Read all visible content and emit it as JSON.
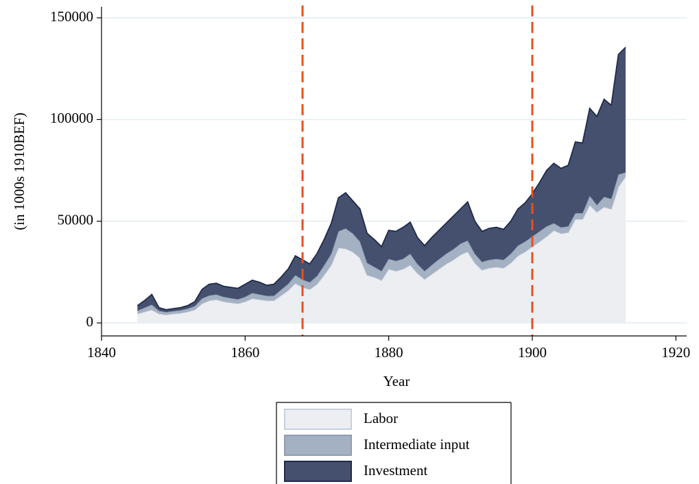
{
  "chart_data": {
    "type": "stacked-area",
    "x_label": "Year",
    "y_label": "(in 1000s 1910BEF)",
    "x": [
      1845,
      1846,
      1847,
      1848,
      1849,
      1850,
      1851,
      1852,
      1853,
      1854,
      1855,
      1856,
      1857,
      1858,
      1859,
      1860,
      1861,
      1862,
      1863,
      1864,
      1865,
      1866,
      1867,
      1868,
      1869,
      1870,
      1871,
      1872,
      1873,
      1874,
      1875,
      1876,
      1877,
      1878,
      1879,
      1880,
      1881,
      1882,
      1883,
      1884,
      1885,
      1886,
      1887,
      1888,
      1889,
      1890,
      1891,
      1892,
      1893,
      1894,
      1895,
      1896,
      1897,
      1898,
      1899,
      1900,
      1901,
      1902,
      1903,
      1904,
      1905,
      1906,
      1907,
      1908,
      1909,
      1910,
      1911,
      1912,
      1913
    ],
    "series": [
      {
        "name": "Labor",
        "color": "#eceef2",
        "stroke": "#c8cfdb",
        "values": [
          4500,
          5500,
          6500,
          4500,
          4000,
          4500,
          4800,
          5500,
          6500,
          9500,
          11000,
          11500,
          10500,
          10000,
          9500,
          10500,
          12000,
          11500,
          11000,
          11000,
          13500,
          16000,
          19500,
          17500,
          16500,
          19000,
          23500,
          28500,
          37000,
          36500,
          35000,
          32000,
          23500,
          22500,
          21000,
          26500,
          25500,
          26500,
          28500,
          24500,
          21500,
          24000,
          26500,
          29000,
          31000,
          33500,
          35000,
          29500,
          26000,
          27000,
          27500,
          27000,
          29500,
          33000,
          35000,
          37500,
          40000,
          42500,
          45500,
          44000,
          44500,
          51000,
          51000,
          58000,
          54500,
          57000,
          56000,
          67000,
          72000
        ]
      },
      {
        "name": "Intermediate input",
        "color": "#a4b1c2",
        "stroke": "#8e9db2",
        "values": [
          1500,
          2000,
          2500,
          1500,
          1300,
          1300,
          1400,
          1500,
          1800,
          2500,
          2500,
          2500,
          2300,
          2200,
          2100,
          2300,
          2700,
          2500,
          2300,
          2300,
          2800,
          3200,
          4000,
          3800,
          3500,
          4000,
          4800,
          5500,
          8000,
          10000,
          9000,
          8000,
          6000,
          5000,
          4500,
          5000,
          5000,
          5000,
          5500,
          4500,
          4000,
          4500,
          4800,
          5000,
          5200,
          5500,
          5500,
          4500,
          4000,
          4000,
          4000,
          4000,
          4500,
          5000,
          5000,
          5000,
          5000,
          5000,
          3500,
          3000,
          3000,
          3000,
          3000,
          4500,
          3500,
          5000,
          5000,
          6000,
          2000
        ]
      },
      {
        "name": "Investment",
        "color": "#45506e",
        "stroke": "#1e2a4a",
        "values": [
          2500,
          3500,
          5000,
          1500,
          1200,
          1200,
          1300,
          1500,
          2200,
          4500,
          5500,
          5500,
          5200,
          5300,
          5400,
          6200,
          6300,
          6000,
          5200,
          5700,
          6200,
          7300,
          9500,
          9700,
          9000,
          11000,
          12700,
          15000,
          16500,
          17500,
          16000,
          16000,
          14500,
          13500,
          12000,
          14000,
          14500,
          15500,
          15500,
          13000,
          12500,
          13500,
          14200,
          15000,
          16300,
          17000,
          19000,
          16000,
          15000,
          15500,
          15500,
          15000,
          16000,
          18000,
          19000,
          21000,
          24000,
          27500,
          29500,
          29000,
          30000,
          35000,
          34500,
          43000,
          43500,
          48000,
          46000,
          59000,
          61500
        ]
      }
    ],
    "xlim": [
      1840,
      1921.5
    ],
    "xticks": [
      1840,
      1860,
      1880,
      1900,
      1920
    ],
    "ylim": [
      -6400,
      155400
    ],
    "yticks": [
      0,
      50000,
      100000,
      150000
    ],
    "grid": true,
    "vlines": [
      1868,
      1900
    ],
    "vline_color": "#e8501c",
    "legend": "bottom"
  }
}
